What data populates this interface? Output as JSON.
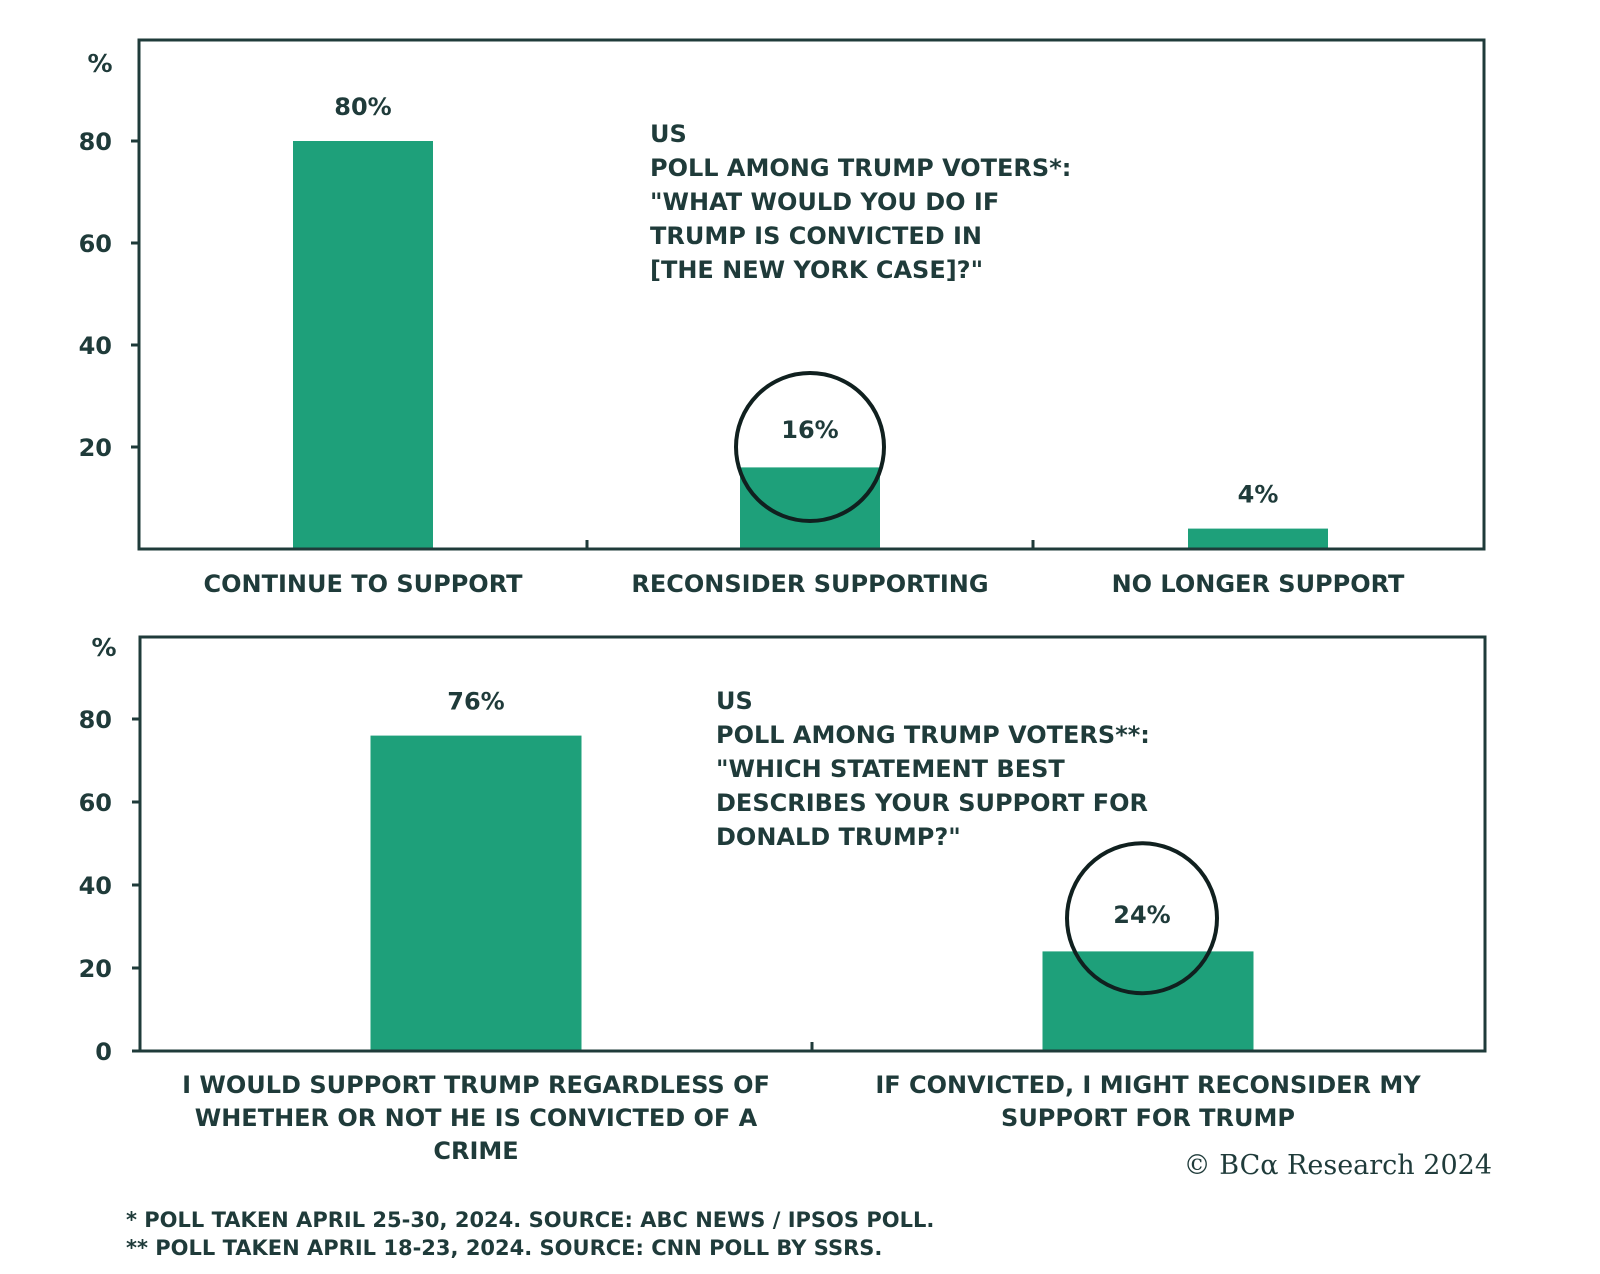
{
  "chart_data": [
    {
      "type": "bar",
      "ylabel": "%",
      "ylim": [
        0,
        100
      ],
      "yticks": [
        "20",
        "40",
        "60",
        "80"
      ],
      "categories": [
        "CONTINUE TO SUPPORT",
        "RECONSIDER SUPPORTING",
        "NO LONGER SUPPORT"
      ],
      "values": [
        80,
        16,
        4
      ],
      "data_labels": [
        "80%",
        "16%",
        "4%"
      ],
      "highlighted_index": 1,
      "annotation": [
        "US",
        "POLL AMONG TRUMP VOTERS*:",
        "\"WHAT WOULD YOU DO IF",
        "TRUMP IS CONVICTED IN",
        "[THE NEW YORK CASE]?\""
      ],
      "bar_color": "#1ea07a",
      "grid": false
    },
    {
      "type": "bar",
      "ylabel": "%",
      "ylim": [
        0,
        100
      ],
      "yticks": [
        "0",
        "20",
        "40",
        "60",
        "80"
      ],
      "categories": [
        [
          "I WOULD SUPPORT TRUMP REGARDLESS OF",
          "WHETHER OR NOT HE IS CONVICTED OF A",
          "CRIME"
        ],
        [
          "IF CONVICTED, I MIGHT RECONSIDER MY",
          "SUPPORT FOR TRUMP"
        ]
      ],
      "values": [
        76,
        24
      ],
      "data_labels": [
        "76%",
        "24%"
      ],
      "highlighted_index": 1,
      "annotation": [
        "US",
        "POLL AMONG TRUMP VOTERS**:",
        "\"WHICH STATEMENT BEST",
        "DESCRIBES YOUR SUPPORT FOR",
        "DONALD TRUMP?\""
      ],
      "bar_color": "#1ea07a",
      "grid": false
    }
  ],
  "copyright": "© BCα Research 2024",
  "footnotes": [
    "* POLL TAKEN APRIL 25-30, 2024. SOURCE: ABC NEWS / IPSOS POLL.",
    "** POLL TAKEN APRIL 18-23, 2024. SOURCE: CNN POLL BY SSRS."
  ],
  "colors": {
    "bar": "#1ea07a",
    "text": "#1f3b3a",
    "frame": "#1f3b3a"
  }
}
